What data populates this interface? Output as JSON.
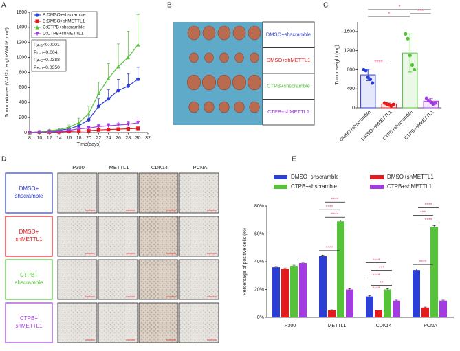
{
  "panel_labels": [
    "A",
    "B",
    "C",
    "D",
    "E"
  ],
  "chart_data": [
    {
      "type": "line",
      "xlabel": "Time(days)",
      "ylabel": "Tumor volumes (V=1/2×Length×Width² ,mm³)",
      "x": [
        8,
        10,
        12,
        14,
        16,
        18,
        20,
        22,
        24,
        26,
        28,
        30
      ],
      "xlim": [
        8,
        32
      ],
      "xticks": [
        8,
        10,
        12,
        14,
        16,
        18,
        20,
        22,
        24,
        26,
        28,
        30,
        32
      ],
      "ylim": [
        0,
        1600
      ],
      "yticks": [
        0,
        200,
        400,
        600,
        800,
        1000,
        1200,
        1400,
        1600
      ],
      "legend": "upper left",
      "series": [
        {
          "name": "A:DMSO+shscramble",
          "color": "#2b3fd6",
          "marker": "circle",
          "values": [
            0,
            10,
            20,
            30,
            50,
            90,
            170,
            350,
            450,
            560,
            620,
            710
          ],
          "errors": [
            0,
            5,
            10,
            15,
            20,
            30,
            60,
            100,
            120,
            150,
            160,
            160
          ]
        },
        {
          "name": "B:DMSO+shMETTL1",
          "color": "#e41a1c",
          "marker": "square",
          "values": [
            0,
            5,
            8,
            10,
            15,
            20,
            25,
            35,
            40,
            45,
            50,
            55
          ],
          "errors": [
            0,
            3,
            5,
            5,
            8,
            10,
            12,
            15,
            15,
            20,
            20,
            20
          ]
        },
        {
          "name": "C:CTPB+shscramble",
          "color": "#55c23a",
          "marker": "triangle-up",
          "values": [
            0,
            10,
            25,
            40,
            70,
            130,
            250,
            520,
            720,
            880,
            1000,
            1170
          ],
          "errors": [
            0,
            10,
            15,
            20,
            30,
            60,
            100,
            150,
            200,
            300,
            350,
            400
          ]
        },
        {
          "name": "D:CTPB+shMETTL1",
          "color": "#a23be0",
          "marker": "triangle-down",
          "values": [
            0,
            5,
            10,
            15,
            30,
            50,
            60,
            80,
            90,
            100,
            110,
            130
          ],
          "errors": [
            0,
            5,
            5,
            10,
            10,
            20,
            25,
            30,
            30,
            40,
            40,
            40
          ]
        }
      ],
      "annotations": [
        {
          "p": "P",
          "sub": "A-B",
          "rest": "<0.0001"
        },
        {
          "p": "P",
          "sub": "C-D",
          "rest": "=0.004"
        },
        {
          "p": "P",
          "sub": "A-C",
          "rest": "=0.0388"
        },
        {
          "p": "P",
          "sub": "B-D",
          "rest": "=0.0350"
        }
      ]
    },
    {
      "type": "bar-scatter",
      "ylabel": "Tumor weight (mg)",
      "categories": [
        "DMSO+shscramble",
        "DMSO+shMETTL1",
        "CTPB+shscramble",
        "CTPB+shMETTL1"
      ],
      "colors": [
        "#2b3fd6",
        "#e41a1c",
        "#55c23a",
        "#a23be0"
      ],
      "values": [
        690,
        80,
        1150,
        140
      ],
      "errors": [
        120,
        20,
        400,
        60
      ],
      "points": [
        [
          800,
          780,
          640,
          600,
          520
        ],
        [
          100,
          80,
          60,
          40,
          70
        ],
        [
          1550,
          1450,
          1100,
          900,
          800
        ],
        [
          200,
          150,
          120,
          80,
          100
        ]
      ],
      "ylim": [
        0,
        1800
      ],
      "yticks": [
        0,
        400,
        800,
        1200,
        1600
      ],
      "significance": [
        "****",
        "*",
        "*",
        "***"
      ]
    },
    {
      "type": "grouped-bar",
      "ylabel": "Percentage of positive cells (%)",
      "categories": [
        "P300",
        "METTL1",
        "CDK14",
        "PCNA"
      ],
      "ylim": [
        0,
        80
      ],
      "yticks": [
        {
          "value": 0,
          "label": "0%"
        },
        {
          "value": 20,
          "label": "20%"
        },
        {
          "value": 40,
          "label": "40%"
        },
        {
          "value": 60,
          "label": "60%"
        },
        {
          "value": 80,
          "label": "80%"
        }
      ],
      "legend": "top",
      "series": [
        {
          "name": "DMSO+shscramble",
          "color": "#2b3fd6",
          "values": [
            36,
            44,
            15,
            34
          ],
          "errors": [
            0.6,
            0.8,
            0.6,
            0.8
          ]
        },
        {
          "name": "DMSO+shMETTL1",
          "color": "#e41a1c",
          "values": [
            35,
            5,
            5,
            7
          ],
          "errors": [
            0.5,
            0.4,
            0.3,
            0.4
          ]
        },
        {
          "name": "CTPB+shscramble",
          "color": "#55c23a",
          "values": [
            37,
            69,
            20,
            65
          ],
          "errors": [
            0.5,
            1,
            0.6,
            1
          ]
        },
        {
          "name": "CTPB+shMETTL1",
          "color": "#a23be0",
          "values": [
            39,
            20,
            12,
            12
          ],
          "errors": [
            0.5,
            0.6,
            0.4,
            0.4
          ]
        }
      ],
      "significance": [
        [],
        [
          "****",
          "****",
          "****",
          "****"
        ],
        [
          "****",
          "**",
          "****",
          "***",
          "****"
        ],
        [
          "****",
          "****",
          "***",
          "****"
        ]
      ]
    }
  ],
  "panel_b": {
    "labels": [
      "DMSO+shscramble",
      "DMSO+shMETTL1",
      "CTPB+shscramble",
      "CTPB+shMETTL1"
    ],
    "colors": [
      "#2b3fd6",
      "#e41a1c",
      "#55c23a",
      "#a23be0"
    ]
  },
  "panel_d": {
    "columns": [
      "P300",
      "METTL1",
      "CDK14",
      "PCNA"
    ],
    "rows": [
      [
        "DMSO+",
        "shscramble"
      ],
      [
        "DMSO+",
        "shMETTL1"
      ],
      [
        "CTPB+",
        "shscramble"
      ],
      [
        "CTPB+",
        "shMETTL1"
      ]
    ],
    "colors": [
      "#2b3fd6",
      "#e41a1c",
      "#55c23a",
      "#a23be0"
    ]
  }
}
